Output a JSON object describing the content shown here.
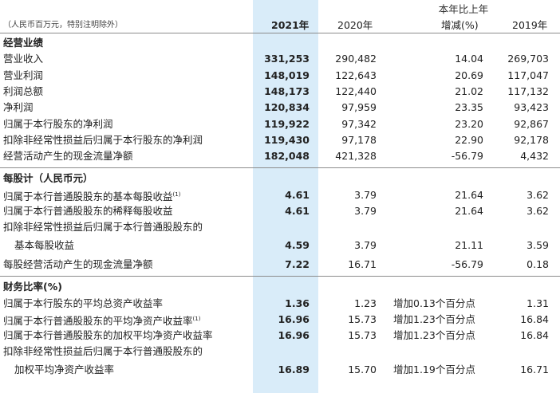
{
  "header": {
    "unit_note": "（人民币百万元，特别注明除外）",
    "change_top": "本年比上年",
    "col_2021": "2021年",
    "col_2020": "2020年",
    "col_change": "增减(%)",
    "col_2019": "2019年"
  },
  "sections": [
    {
      "title": "经营业绩",
      "rows": [
        {
          "label": "营业收入",
          "v2021": "331,253",
          "v2020": "290,482",
          "change": "14.04",
          "v2019": "269,703"
        },
        {
          "label": "营业利润",
          "v2021": "148,019",
          "v2020": "122,643",
          "change": "20.69",
          "v2019": "117,047"
        },
        {
          "label": "利润总额",
          "v2021": "148,173",
          "v2020": "122,440",
          "change": "21.02",
          "v2019": "117,132"
        },
        {
          "label": "净利润",
          "v2021": "120,834",
          "v2020": "97,959",
          "change": "23.35",
          "v2019": "93,423"
        },
        {
          "label": "归属于本行股东的净利润",
          "v2021": "119,922",
          "v2020": "97,342",
          "change": "23.20",
          "v2019": "92,867"
        },
        {
          "label": "扣除非经常性损益后归属于本行股东的净利润",
          "v2021": "119,430",
          "v2020": "97,178",
          "change": "22.90",
          "v2019": "92,178"
        },
        {
          "label": "经营活动产生的现金流量净额",
          "v2021": "182,048",
          "v2020": "421,328",
          "change": "-56.79",
          "v2019": "4,432"
        }
      ]
    },
    {
      "title": "每股计（人民币元）",
      "rows": [
        {
          "label": "归属于本行普通股股东的基本每股收益",
          "note": "(1)",
          "v2021": "4.61",
          "v2020": "3.79",
          "change": "21.64",
          "v2019": "3.62"
        },
        {
          "label": "归属于本行普通股股东的稀释每股收益",
          "v2021": "4.61",
          "v2020": "3.79",
          "change": "21.64",
          "v2019": "3.62"
        },
        {
          "label": "扣除非经常性损益后归属于本行普通股股东的",
          "label2": "基本每股收益",
          "v2021": "4.59",
          "v2020": "3.79",
          "change": "21.11",
          "v2019": "3.59"
        },
        {
          "label": "每股经营活动产生的现金流量净额",
          "v2021": "7.22",
          "v2020": "16.71",
          "change": "-56.79",
          "v2019": "0.18"
        }
      ]
    },
    {
      "title": "财务比率(%)",
      "rows": [
        {
          "label": "归属于本行股东的平均总资产收益率",
          "v2021": "1.36",
          "v2020": "1.23",
          "change": "增加0.13个百分点",
          "v2019": "1.31"
        },
        {
          "label": "归属于本行普通股股东的平均净资产收益率",
          "note": "(1)",
          "v2021": "16.96",
          "v2020": "15.73",
          "change": "增加1.23个百分点",
          "v2019": "16.84"
        },
        {
          "label": "归属于本行普通股股东的加权平均净资产收益率",
          "v2021": "16.96",
          "v2020": "15.73",
          "change": "增加1.23个百分点",
          "v2019": "16.84"
        },
        {
          "label": "扣除非经常性损益后归属于本行普通股股东的",
          "label2": "加权平均净资产收益率",
          "v2021": "16.89",
          "v2020": "15.70",
          "change": "增加1.19个百分点",
          "v2019": "16.71"
        }
      ]
    }
  ]
}
